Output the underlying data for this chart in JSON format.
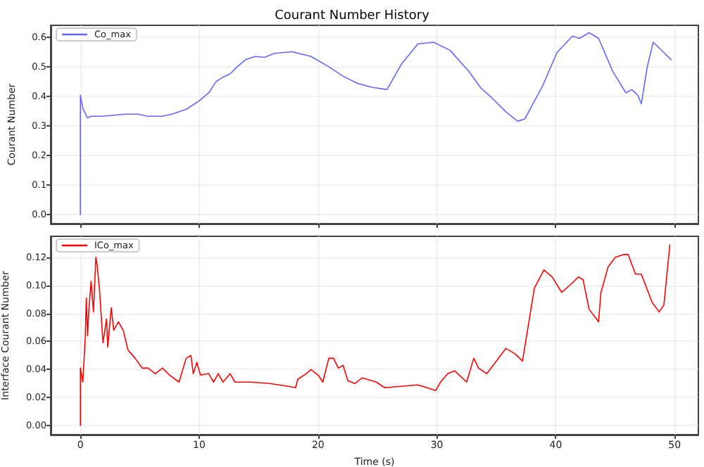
{
  "chart_data": [
    {
      "type": "line",
      "title": "Courant Number History",
      "ylabel": "Courant Number",
      "xlim": [
        -2.5,
        52
      ],
      "xticks": [
        0,
        10,
        20,
        30,
        40,
        50
      ],
      "ylim": [
        -0.03,
        0.64
      ],
      "yticks": [
        {
          "value": 0,
          "label": "0.0"
        },
        {
          "value": 0.1,
          "label": "0.1"
        },
        {
          "value": 0.2,
          "label": "0.2"
        },
        {
          "value": 0.3,
          "label": "0.3"
        },
        {
          "value": 0.4,
          "label": "0.4"
        },
        {
          "value": 0.5,
          "label": "0.5"
        },
        {
          "value": 0.6,
          "label": "0.6"
        }
      ],
      "tick_labels": "y",
      "grid": true,
      "legend": "top left",
      "marker": "none",
      "line_style": "solid",
      "series": [
        {
          "name": "Co_max",
          "color": "#6666ff",
          "x": [
            0,
            0,
            0.2,
            0.6,
            0.9,
            1.9,
            3.8,
            4.8,
            5.7,
            6.9,
            7.7,
            8.9,
            10.0,
            10.8,
            11.4,
            12.0,
            12.6,
            13.2,
            13.9,
            14.7,
            15.5,
            16.3,
            17.8,
            19.4,
            20.9,
            22.1,
            23.3,
            24.5,
            25.8,
            27.0,
            28.4,
            29.7,
            31.1,
            32.7,
            33.7,
            34.6,
            35.8,
            36.8,
            37.4,
            38.9,
            40.1,
            41.4,
            42.0,
            42.8,
            43.6,
            44.8,
            45.9,
            46.4,
            46.9,
            47.2,
            47.7,
            48.2,
            49.1,
            49.7
          ],
          "values": [
            0.0,
            0.404,
            0.36,
            0.327,
            0.333,
            0.333,
            0.34,
            0.34,
            0.333,
            0.333,
            0.34,
            0.356,
            0.385,
            0.412,
            0.449,
            0.465,
            0.476,
            0.5,
            0.524,
            0.535,
            0.532,
            0.545,
            0.551,
            0.535,
            0.5,
            0.468,
            0.444,
            0.431,
            0.423,
            0.508,
            0.577,
            0.583,
            0.556,
            0.484,
            0.428,
            0.396,
            0.348,
            0.316,
            0.324,
            0.436,
            0.548,
            0.603,
            0.596,
            0.615,
            0.596,
            0.484,
            0.412,
            0.423,
            0.404,
            0.375,
            0.5,
            0.583,
            0.548,
            0.524
          ]
        }
      ]
    },
    {
      "type": "line",
      "xlabel": "Time (s)",
      "ylabel": "Interface Courant Number",
      "xlim": [
        -2.5,
        52
      ],
      "xticks": [
        0,
        10,
        20,
        30,
        40,
        50
      ],
      "ylim": [
        -0.0065,
        0.135
      ],
      "yticks": [
        {
          "value": 0,
          "label": "0.00"
        },
        {
          "value": 0.02,
          "label": "0.02"
        },
        {
          "value": 0.04,
          "label": "0.04"
        },
        {
          "value": 0.06,
          "label": "0.06"
        },
        {
          "value": 0.08,
          "label": "0.08"
        },
        {
          "value": 0.1,
          "label": "0.10"
        },
        {
          "value": 0.12,
          "label": "0.12"
        }
      ],
      "grid": true,
      "legend": "top left",
      "marker": "none",
      "line_style": "solid",
      "series": [
        {
          "name": "ICo_max",
          "color": "#ff0000",
          "x": [
            0,
            0,
            0.2,
            0.4,
            0.5,
            0.6,
            0.7,
            0.9,
            1.1,
            1.3,
            1.4,
            1.6,
            1.9,
            2.2,
            2.3,
            2.6,
            2.8,
            3.2,
            3.6,
            4.0,
            4.6,
            5.2,
            5.7,
            6.3,
            6.9,
            7.5,
            8.3,
            8.9,
            9.3,
            9.5,
            9.8,
            10.1,
            10.8,
            11.2,
            11.6,
            12.0,
            12.6,
            13.0,
            14.3,
            15.9,
            16.7,
            17.5,
            18.1,
            18.3,
            19.0,
            19.4,
            20.0,
            20.4,
            20.9,
            21.3,
            21.7,
            22.1,
            22.5,
            23.1,
            23.7,
            24.9,
            25.6,
            28.4,
            29.9,
            30.3,
            30.9,
            31.5,
            32.5,
            33.1,
            33.5,
            34.2,
            35.8,
            36.6,
            37.2,
            38.2,
            39.0,
            39.7,
            40.5,
            41.3,
            41.9,
            42.3,
            42.8,
            43.6,
            43.8,
            44.4,
            45.0,
            45.7,
            46.1,
            46.7,
            47.2,
            48.1,
            48.7,
            49.1,
            49.6
          ],
          "values": [
            0.0,
            0.041,
            0.031,
            0.061,
            0.091,
            0.064,
            0.081,
            0.103,
            0.081,
            0.12,
            0.115,
            0.098,
            0.059,
            0.076,
            0.056,
            0.084,
            0.068,
            0.074,
            0.068,
            0.054,
            0.048,
            0.041,
            0.041,
            0.037,
            0.041,
            0.036,
            0.031,
            0.048,
            0.05,
            0.037,
            0.045,
            0.036,
            0.037,
            0.031,
            0.037,
            0.031,
            0.037,
            0.031,
            0.031,
            0.03,
            0.029,
            0.028,
            0.027,
            0.033,
            0.037,
            0.04,
            0.036,
            0.031,
            0.048,
            0.048,
            0.041,
            0.043,
            0.032,
            0.03,
            0.034,
            0.031,
            0.027,
            0.029,
            0.025,
            0.031,
            0.037,
            0.039,
            0.031,
            0.048,
            0.041,
            0.037,
            0.055,
            0.051,
            0.046,
            0.098,
            0.111,
            0.106,
            0.095,
            0.101,
            0.106,
            0.104,
            0.083,
            0.074,
            0.095,
            0.113,
            0.12,
            0.122,
            0.122,
            0.108,
            0.108,
            0.088,
            0.081,
            0.086,
            0.129
          ]
        }
      ]
    }
  ]
}
